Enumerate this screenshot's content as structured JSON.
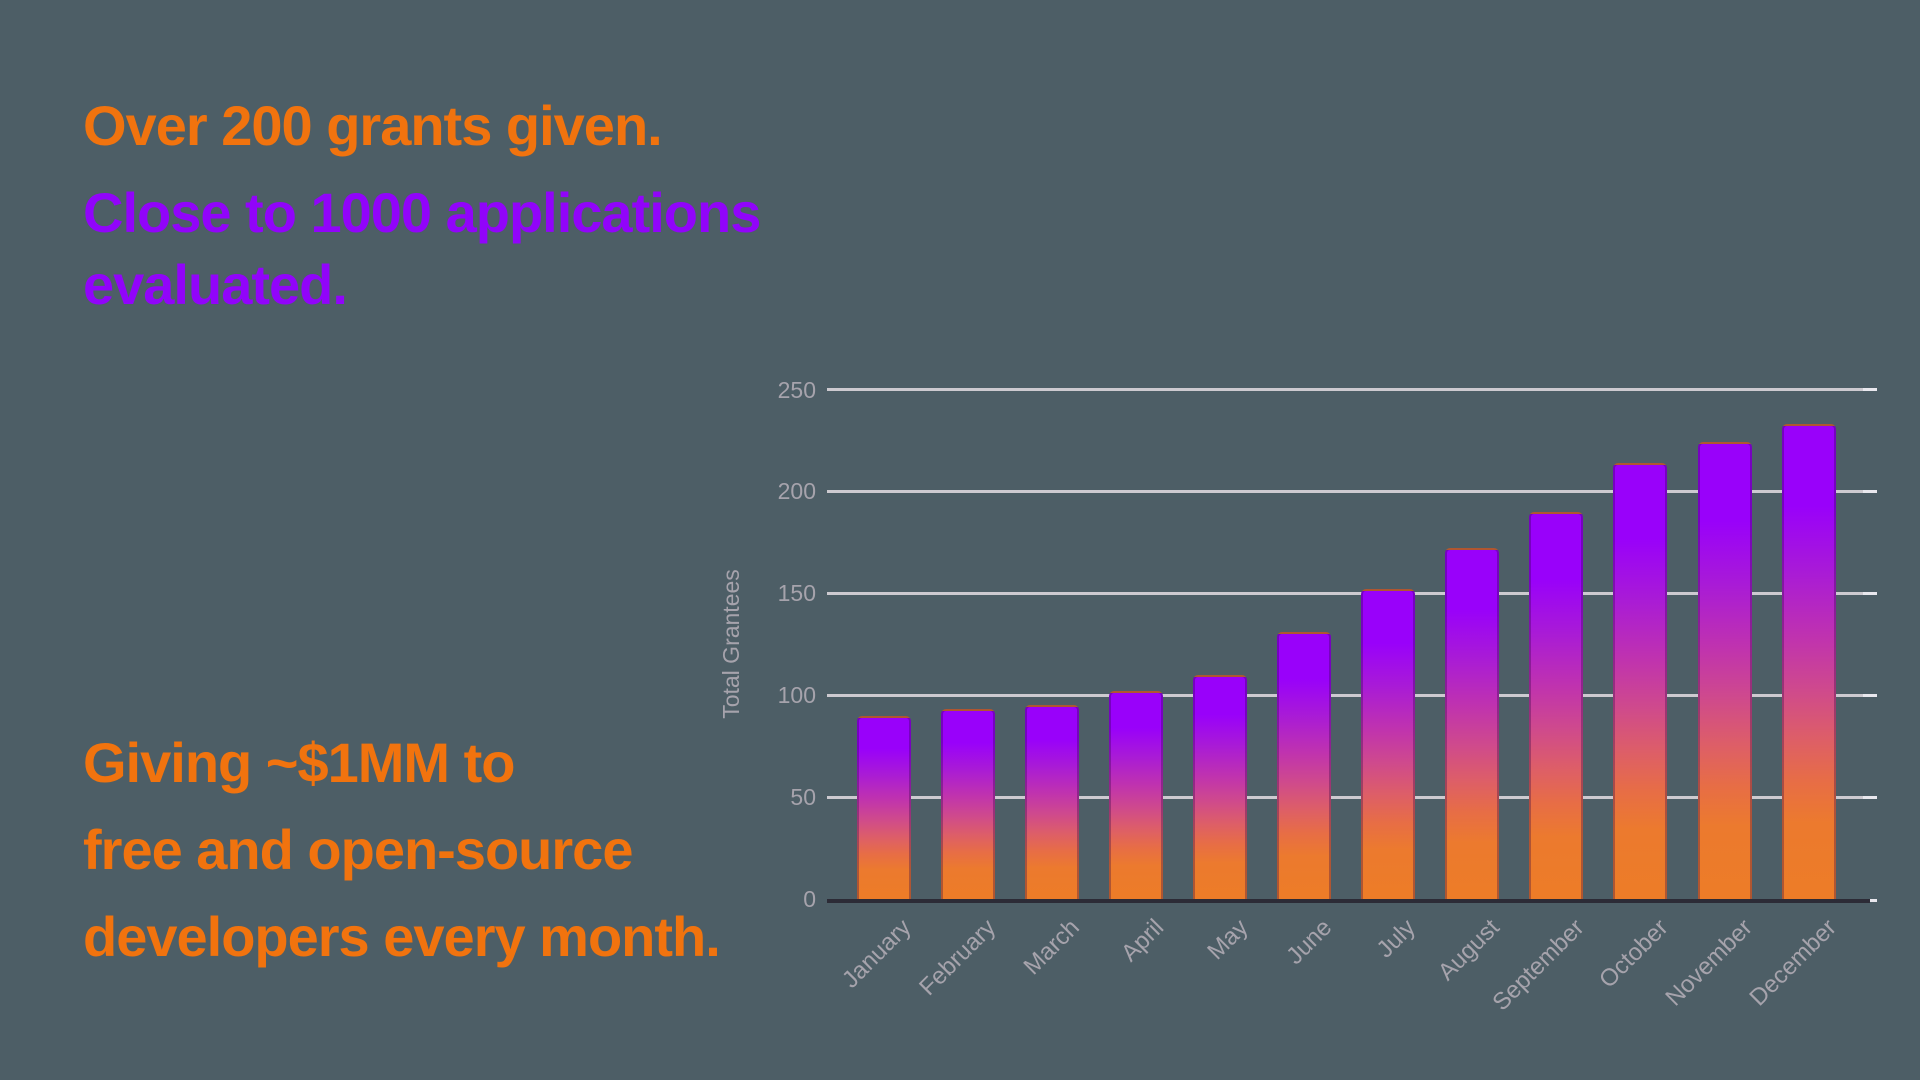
{
  "headings": {
    "grants": {
      "text": "Over 200 grants given.",
      "color": "#F1730E"
    },
    "applications": {
      "lines": [
        "Close to 1000 applications",
        "evaluated."
      ],
      "color": "#9104FA"
    },
    "giving": {
      "lines": [
        "Giving ~$1MM to",
        "free and open-source",
        "developers every month."
      ],
      "color": "#F1730E"
    }
  },
  "chart_data": {
    "type": "bar",
    "title": "",
    "categories": [
      "January",
      "February",
      "March",
      "April",
      "May",
      "June",
      "July",
      "August",
      "September",
      "October",
      "November",
      "December"
    ],
    "series": [
      {
        "name": "Total Grantees",
        "values": [
          90,
          93,
          95,
          102,
          110,
          131,
          152,
          172,
          190,
          214,
          224,
          233
        ]
      }
    ],
    "xlabel": "",
    "ylabel": "Total Grantees",
    "ylim": [
      0,
      250
    ],
    "yticks": [
      0,
      50,
      100,
      150,
      200,
      250
    ],
    "grid": true,
    "legend_position": "none",
    "x_tick_rotation": -45,
    "bar_gradient_top_to_bottom": [
      [
        "#9901FA",
        0
      ],
      [
        "#9901FA",
        17
      ],
      [
        "#A91BD6",
        31
      ],
      [
        "#C033AE",
        45
      ],
      [
        "#CF4A8C",
        56
      ],
      [
        "#DD5E68",
        66
      ],
      [
        "#E76D46",
        75
      ],
      [
        "#EC7A2E",
        84
      ],
      [
        "#ED7C27",
        100
      ]
    ]
  },
  "colors": {
    "background": "#4D5E66",
    "orange_text": "#F1730E",
    "purple_text": "#9104FA",
    "gridline": "#CDCAD0",
    "tick_label": "#A6A3AC",
    "axis_line": "#2C2B36"
  }
}
